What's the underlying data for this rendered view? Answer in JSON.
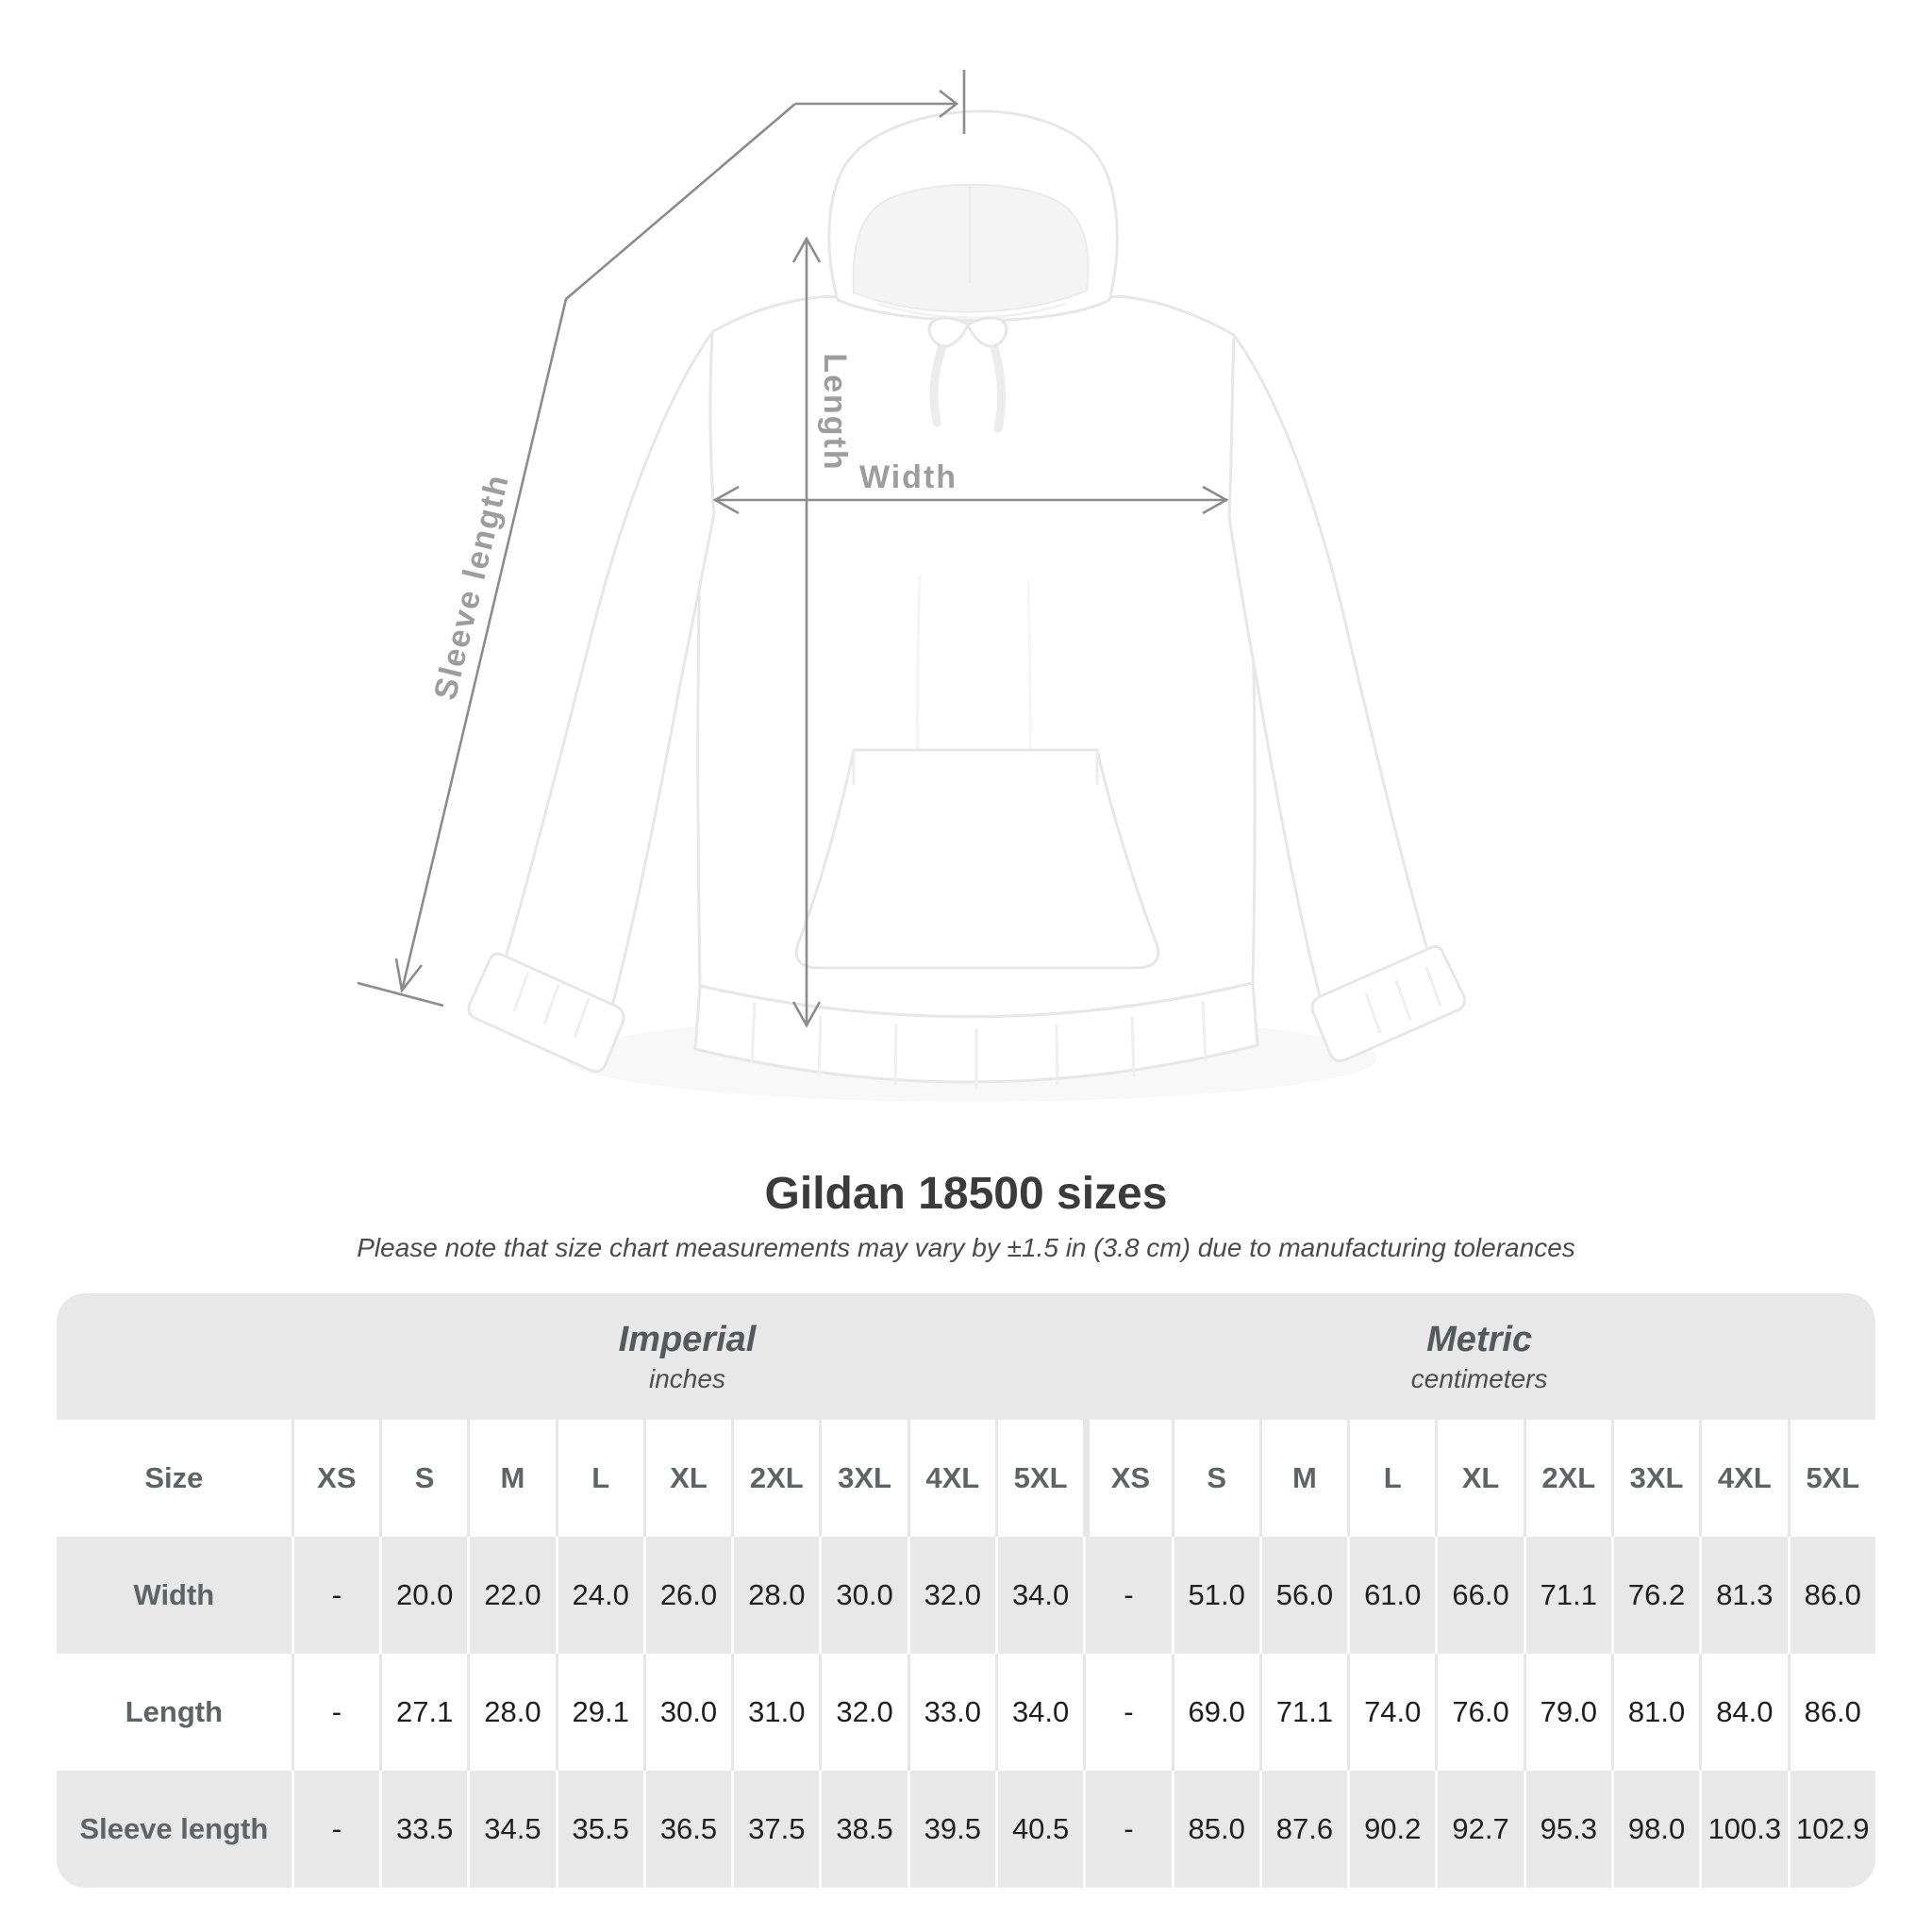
{
  "title": "Gildan 18500 sizes",
  "subtitle": "Please note that size chart measurements may vary by ±1.5 in (3.8 cm) due to manufacturing tolerances",
  "diagram": {
    "length_label": "Length",
    "width_label": "Width",
    "sleeve_label": "Sleeve length"
  },
  "colors": {
    "band_bg": "#e8e8e8",
    "alt_row_bg": "#e8e8e8",
    "measure_line": "#8c8c8c",
    "measure_label": "#9d9d9d",
    "header_text": "#5e6466",
    "value_text": "#1f1f1f",
    "title_text": "#3b3b3b"
  },
  "chart_data": {
    "type": "table",
    "title": "Gildan 18500 sizes",
    "note": "Please note that size chart measurements may vary by ±1.5 in (3.8 cm) due to manufacturing tolerances",
    "size_col_header": "Size",
    "groups": [
      {
        "label": "Imperial",
        "unit": "inches"
      },
      {
        "label": "Metric",
        "unit": "centimeters"
      }
    ],
    "sizes": [
      "XS",
      "S",
      "M",
      "L",
      "XL",
      "2XL",
      "3XL",
      "4XL",
      "5XL"
    ],
    "rows": [
      {
        "label": "Width",
        "imperial": [
          "-",
          "20.0",
          "22.0",
          "24.0",
          "26.0",
          "28.0",
          "30.0",
          "32.0",
          "34.0"
        ],
        "metric": [
          "-",
          "51.0",
          "56.0",
          "61.0",
          "66.0",
          "71.1",
          "76.2",
          "81.3",
          "86.0"
        ]
      },
      {
        "label": "Length",
        "imperial": [
          "-",
          "27.1",
          "28.0",
          "29.1",
          "30.0",
          "31.0",
          "32.0",
          "33.0",
          "34.0"
        ],
        "metric": [
          "-",
          "69.0",
          "71.1",
          "74.0",
          "76.0",
          "79.0",
          "81.0",
          "84.0",
          "86.0"
        ]
      },
      {
        "label": "Sleeve length",
        "imperial": [
          "-",
          "33.5",
          "34.5",
          "35.5",
          "36.5",
          "37.5",
          "38.5",
          "39.5",
          "40.5"
        ],
        "metric": [
          "-",
          "85.0",
          "87.6",
          "90.2",
          "92.7",
          "95.3",
          "98.0",
          "100.3",
          "102.9"
        ]
      }
    ]
  }
}
